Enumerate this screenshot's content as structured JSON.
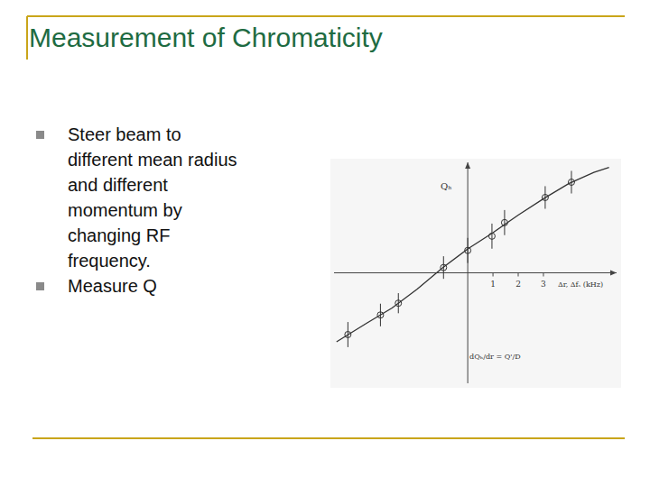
{
  "slide": {
    "title": "Measurement of Chromaticity",
    "bullets": [
      [
        "Steer beam to",
        "different mean radius",
        "and different",
        "momentum by",
        "changing RF",
        "frequency."
      ],
      [
        "Measure Q"
      ]
    ]
  },
  "chart_data": {
    "type": "scatter",
    "y_label": "Qₕ",
    "x_label": "Δr, Δfₛ (kHz)",
    "annotation": "dQₕ/dr = Q'/D",
    "xlim": [
      -5.3,
      5.9
    ],
    "ylim": [
      -4.4,
      4.4
    ],
    "xticks": [
      1,
      2,
      3
    ],
    "yticks": [],
    "tick_labels": "x",
    "grid": false,
    "series": [
      {
        "type": "scatter",
        "marker": "circle",
        "color": "#333333",
        "x": [
          -4.75,
          -3.46,
          -2.75,
          -0.96,
          0,
          0.96,
          1.46,
          3.07,
          4.11
        ],
        "values": [
          -2.46,
          -1.68,
          -1.21,
          0.21,
          0.89,
          1.46,
          2.0,
          3.0,
          3.61
        ],
        "errors": [
          0.5,
          0.45,
          0.4,
          0.45,
          0.5,
          0.5,
          0.5,
          0.45,
          0.45
        ]
      },
      {
        "type": "line",
        "line_style": "solid",
        "color": "#333333",
        "x": [
          -5.2,
          -4,
          -3,
          -2,
          -1,
          0,
          1,
          2,
          3,
          4,
          5,
          5.6
        ],
        "values": [
          -2.75,
          -2.0,
          -1.4,
          -0.65,
          0.2,
          0.95,
          1.6,
          2.3,
          2.95,
          3.55,
          4.0,
          4.2
        ]
      }
    ]
  }
}
